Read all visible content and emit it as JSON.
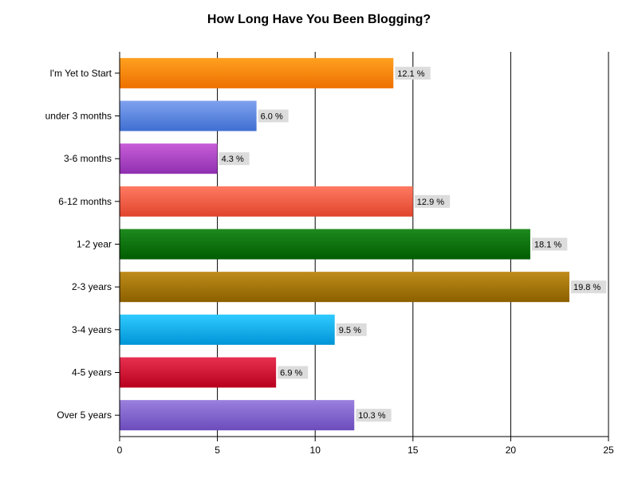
{
  "chart_data": {
    "type": "bar",
    "orientation": "horizontal",
    "title": "How Long Have You Been Blogging?",
    "xlabel": "",
    "ylabel": "",
    "xlim": [
      0,
      25
    ],
    "xticks": [
      "0",
      "5",
      "10",
      "15",
      "20",
      "25"
    ],
    "grid": true,
    "legend": "none",
    "categories": [
      "I'm Yet to Start",
      "under 3 months",
      "3-6 months",
      "6-12 months",
      "1-2 year",
      "2-3 years",
      "3-4 years",
      "4-5 years",
      "Over 5 years"
    ],
    "values": [
      14,
      7,
      5,
      15,
      21,
      23,
      11,
      8,
      12
    ],
    "data_labels": [
      "12.1 %",
      "6.0 %",
      "4.3 %",
      "12.9 %",
      "18.1 %",
      "19.8 %",
      "9.5 %",
      "6.9 %",
      "10.3 %"
    ],
    "colors": [
      [
        "#ffa020",
        "#ee7000"
      ],
      [
        "#7fa2ee",
        "#3f6fd2"
      ],
      [
        "#c85ed8",
        "#8f2fb0"
      ],
      [
        "#ff7a62",
        "#e0442c"
      ],
      [
        "#1e8a1e",
        "#005c00"
      ],
      [
        "#be8c1a",
        "#8c6000"
      ],
      [
        "#30caff",
        "#0094d6"
      ],
      [
        "#e83050",
        "#b8001e"
      ],
      [
        "#9a80de",
        "#6c4cbc"
      ]
    ]
  }
}
